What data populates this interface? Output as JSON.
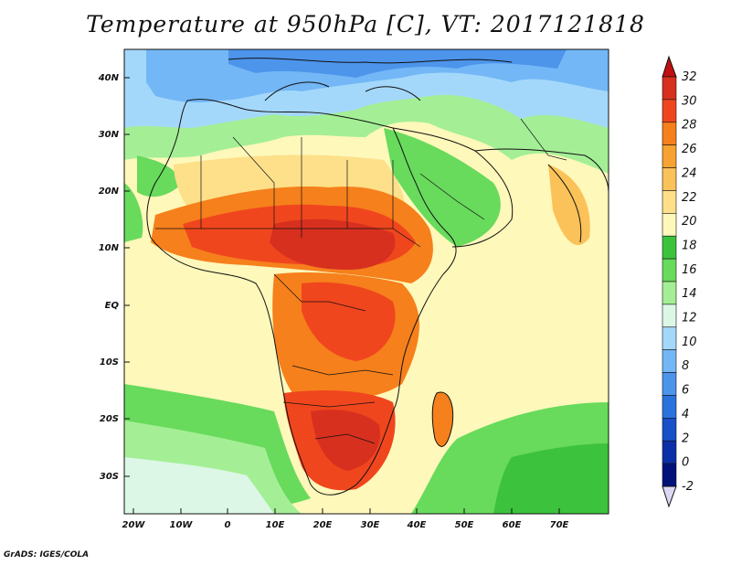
{
  "title": "Temperature at 950hPa [C], VT: 2017121818",
  "footer": "GrADS: IGES/COLA",
  "lat_labels": [
    "40N",
    "30N",
    "20N",
    "10N",
    "EQ",
    "10S",
    "20S",
    "30S"
  ],
  "lon_labels": [
    "20W",
    "10W",
    "0",
    "10E",
    "20E",
    "30E",
    "40E",
    "50E",
    "60E",
    "70E"
  ],
  "colorbar": {
    "levels": [
      "32",
      "30",
      "28",
      "26",
      "24",
      "22",
      "20",
      "18",
      "16",
      "14",
      "12",
      "10",
      "8",
      "6",
      "4",
      "2",
      "0",
      "-2"
    ],
    "colors_top_down": [
      "#d7301f",
      "#f0461e",
      "#f6801c",
      "#f7a331",
      "#fbc25a",
      "#fde089",
      "#fef8ba",
      "#3dc23d",
      "#68da5c",
      "#a4ef96",
      "#dcf7e6",
      "#a4d8fb",
      "#73b7f6",
      "#4d94eb",
      "#2b73dc",
      "#1750c8",
      "#0a2fa8",
      "#03117a"
    ],
    "top_arrow_color": "#c01010",
    "bottom_arrow_color": "#dcd8f4"
  },
  "colors": {
    "ocean_warm": "#fef8ba",
    "land_hot": "#e8381c",
    "cold_north": "#4d94eb",
    "border": "#111111"
  }
}
